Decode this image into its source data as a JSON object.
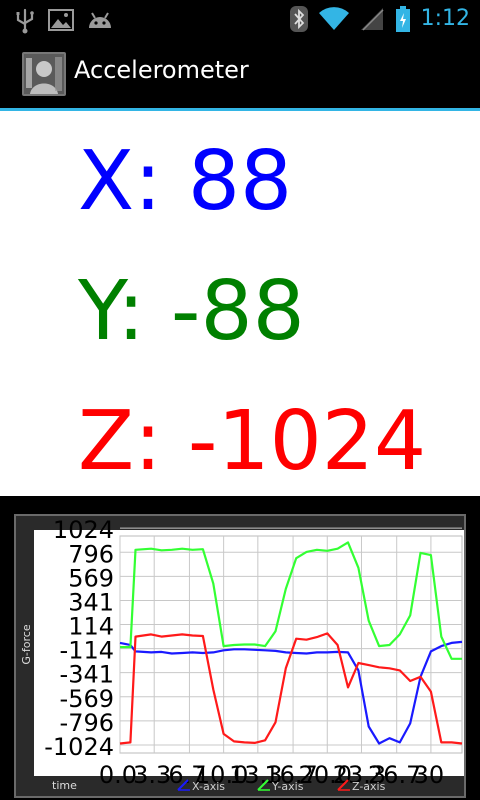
{
  "status_bar": {
    "time": "1:12",
    "left_icons": [
      "usb-icon",
      "image-icon",
      "android-icon"
    ],
    "right_icons": [
      "bluetooth-icon",
      "wifi-icon",
      "signal-icon",
      "battery-icon"
    ]
  },
  "action_bar": {
    "title": "Accelerometer",
    "app_icon": "app-icon"
  },
  "readings": {
    "x": "X: 88",
    "y": "Y: -88",
    "z": "Z: -1024",
    "x_color": "#0000ff",
    "y_color": "#008000",
    "z_color": "#ff0000"
  },
  "chart_data": {
    "type": "line",
    "xlabel": "time",
    "ylabel": "G-force",
    "ylim": [
      -1100,
      950
    ],
    "xlim": [
      0,
      33
    ],
    "y_ticks": [
      "1024",
      "796",
      "569",
      "341",
      "114",
      "-114",
      "-341",
      "-569",
      "-796",
      "-1024"
    ],
    "y_tick_values": [
      1024,
      796,
      569,
      341,
      114,
      -114,
      -341,
      -569,
      -796,
      -1024
    ],
    "x_ticks": [
      "0.0",
      "3.3",
      "6.7",
      "10.0",
      "13.3",
      "16.7",
      "20.0",
      "23.3",
      "26.7",
      "30"
    ],
    "x_tick_values": [
      0.0,
      3.3,
      6.7,
      10.0,
      13.3,
      16.7,
      20.0,
      23.3,
      26.7,
      30.0
    ],
    "grid": true,
    "legend_position": "bottom",
    "series": [
      {
        "name": "X-axis",
        "color": "#1a1aff",
        "x": [
          0,
          1,
          1.5,
          3,
          4,
          5,
          6,
          7,
          8,
          9,
          10,
          11,
          12,
          13,
          14,
          15,
          16,
          17,
          18,
          19,
          20,
          21,
          22,
          23,
          24,
          25,
          26,
          27,
          28,
          29,
          30,
          31,
          32,
          33
        ],
        "y": [
          -60,
          -80,
          -140,
          -150,
          -145,
          -160,
          -155,
          -150,
          -155,
          -150,
          -130,
          -120,
          -120,
          -125,
          -130,
          -135,
          -150,
          -155,
          -160,
          -150,
          -150,
          -145,
          -150,
          -320,
          -850,
          -1010,
          -960,
          -1000,
          -820,
          -380,
          -140,
          -90,
          -60,
          -50
        ]
      },
      {
        "name": "Y-axis",
        "color": "#33ff33",
        "x": [
          0,
          1,
          1.5,
          3,
          4,
          5,
          6,
          7,
          8,
          9,
          10,
          11,
          12,
          13,
          14,
          15,
          16,
          17,
          18,
          19,
          20,
          21,
          22,
          23,
          24,
          25,
          26,
          27,
          28,
          29,
          30,
          31,
          32,
          33
        ],
        "y": [
          -100,
          -100,
          820,
          830,
          815,
          820,
          830,
          820,
          825,
          500,
          -90,
          -80,
          -75,
          -75,
          -90,
          50,
          450,
          740,
          800,
          820,
          810,
          830,
          890,
          650,
          150,
          -90,
          -80,
          20,
          200,
          790,
          770,
          0,
          -210,
          -210
        ]
      },
      {
        "name": "Z-axis",
        "color": "#ff1a1a",
        "x": [
          0,
          1,
          1.5,
          3,
          4,
          5,
          6,
          7,
          8,
          9,
          10,
          11,
          12,
          13,
          14,
          15,
          16,
          17,
          18,
          19,
          20,
          21,
          22,
          23,
          24,
          25,
          26,
          27,
          28,
          29,
          30,
          31,
          32,
          33
        ],
        "y": [
          -1010,
          -1000,
          0,
          20,
          0,
          10,
          20,
          10,
          5,
          -500,
          -920,
          -990,
          -1000,
          -1005,
          -980,
          -810,
          -300,
          -20,
          -30,
          -5,
          30,
          -80,
          -480,
          -250,
          -270,
          -290,
          -300,
          -320,
          -420,
          -380,
          -520,
          -1000,
          -1000,
          -1010
        ]
      }
    ]
  }
}
